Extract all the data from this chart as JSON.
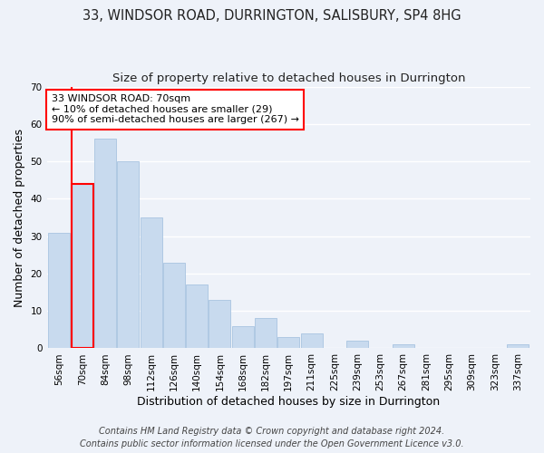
{
  "title": "33, WINDSOR ROAD, DURRINGTON, SALISBURY, SP4 8HG",
  "subtitle": "Size of property relative to detached houses in Durrington",
  "xlabel": "Distribution of detached houses by size in Durrington",
  "ylabel": "Number of detached properties",
  "footer_line1": "Contains HM Land Registry data © Crown copyright and database right 2024.",
  "footer_line2": "Contains public sector information licensed under the Open Government Licence v3.0.",
  "bin_labels": [
    "56sqm",
    "70sqm",
    "84sqm",
    "98sqm",
    "112sqm",
    "126sqm",
    "140sqm",
    "154sqm",
    "168sqm",
    "182sqm",
    "197sqm",
    "211sqm",
    "225sqm",
    "239sqm",
    "253sqm",
    "267sqm",
    "281sqm",
    "295sqm",
    "309sqm",
    "323sqm",
    "337sqm"
  ],
  "bar_heights": [
    31,
    44,
    56,
    50,
    35,
    23,
    17,
    13,
    6,
    8,
    3,
    4,
    0,
    2,
    0,
    1,
    0,
    0,
    0,
    0,
    1
  ],
  "bar_color": "#c8daee",
  "bar_edge_color": "#a8c4e0",
  "highlight_bar_index": 1,
  "highlight_edge_color": "red",
  "ylim": [
    0,
    70
  ],
  "yticks": [
    0,
    10,
    20,
    30,
    40,
    50,
    60,
    70
  ],
  "annotation_title": "33 WINDSOR ROAD: 70sqm",
  "annotation_line1": "← 10% of detached houses are smaller (29)",
  "annotation_line2": "90% of semi-detached houses are larger (267) →",
  "background_color": "#eef2f9",
  "grid_color": "#ffffff",
  "title_fontsize": 10.5,
  "subtitle_fontsize": 9.5,
  "axis_label_fontsize": 9,
  "tick_fontsize": 7.5,
  "annotation_fontsize": 8,
  "footer_fontsize": 7
}
